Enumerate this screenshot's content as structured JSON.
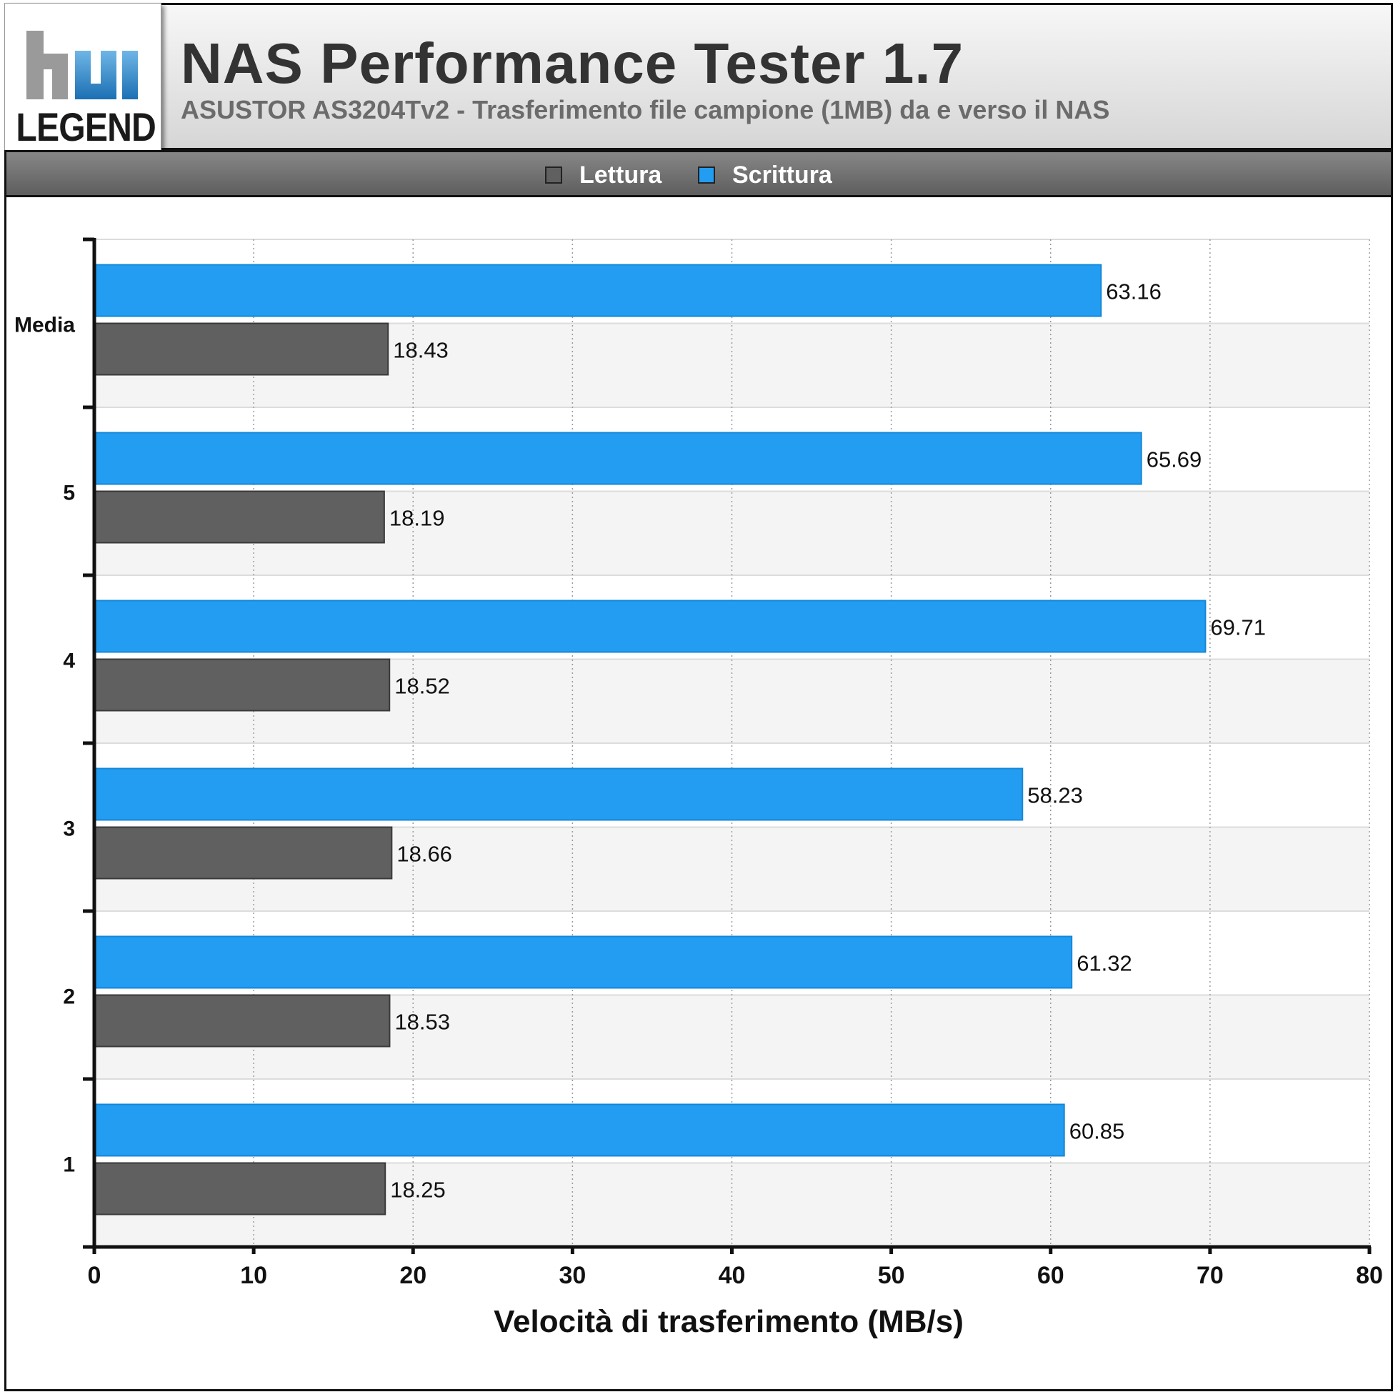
{
  "header": {
    "logo_text": "LEGEND",
    "title": "NAS Performance Tester 1.7",
    "subtitle": "ASUSTOR AS3204Tv2 - Trasferimento file campione (1MB) da e verso il NAS"
  },
  "legend": {
    "position": "top",
    "items": [
      {
        "label": "Lettura",
        "color": "#606060"
      },
      {
        "label": "Scrittura",
        "color": "#229df1"
      }
    ]
  },
  "colors": {
    "lettura": "#606060",
    "scrittura": "#229df1",
    "band_alt": "#f4f4f4"
  },
  "chart_data": {
    "type": "bar",
    "orientation": "horizontal",
    "title": "NAS Performance Tester 1.7",
    "subtitle": "ASUSTOR AS3204Tv2 - Trasferimento file campione (1MB) da e verso il NAS",
    "xlabel": "Velocità di trasferimento (MB/s)",
    "ylabel": "",
    "xlim": [
      0,
      80
    ],
    "xticks": [
      0,
      10,
      20,
      30,
      40,
      50,
      60,
      70,
      80
    ],
    "grid": true,
    "categories": [
      "Media",
      "5",
      "4",
      "3",
      "2",
      "1"
    ],
    "series": [
      {
        "name": "Scrittura",
        "values": [
          63.16,
          65.69,
          69.71,
          58.23,
          61.32,
          60.85
        ]
      },
      {
        "name": "Lettura",
        "values": [
          18.43,
          18.19,
          18.52,
          18.66,
          18.53,
          18.25
        ]
      }
    ],
    "value_labels": {
      "Scrittura": [
        "63.16",
        "65.69",
        "69.71",
        "58.23",
        "61.32",
        "60.85"
      ],
      "Lettura": [
        "18.43",
        "18.19",
        "18.52",
        "18.66",
        "18.53",
        "18.25"
      ]
    }
  }
}
